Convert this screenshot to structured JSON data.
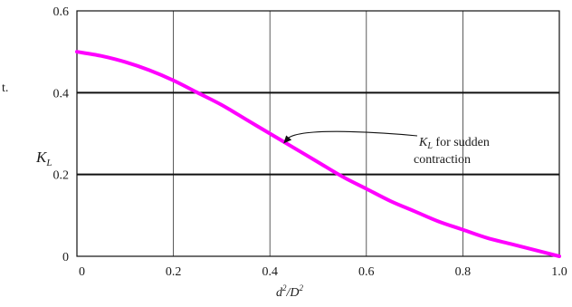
{
  "chart_data": {
    "type": "line",
    "title": "",
    "xlabel": {
      "base": "d",
      "sup1": "2",
      "mid": "/D",
      "sup2": "2"
    },
    "ylabel": {
      "base": "K",
      "sub": "L"
    },
    "xlim": [
      0,
      1.0
    ],
    "ylim": [
      0,
      0.6
    ],
    "x_ticks": [
      0,
      0.2,
      0.4,
      0.6,
      0.8,
      1.0
    ],
    "x_tick_labels": [
      "0",
      "0.2",
      "0.4",
      "0.6",
      "0.8",
      "1.0"
    ],
    "y_ticks": [
      0,
      0.2,
      0.4,
      0.6
    ],
    "y_tick_labels": [
      "0",
      "0.2",
      "0.4",
      "0.6"
    ],
    "grid": true,
    "series": [
      {
        "color": "#ff00ff",
        "x": [
          0,
          0.05,
          0.1,
          0.15,
          0.2,
          0.25,
          0.3,
          0.35,
          0.4,
          0.45,
          0.5,
          0.55,
          0.6,
          0.65,
          0.7,
          0.75,
          0.8,
          0.85,
          0.9,
          0.95,
          1.0
        ],
        "y": [
          0.5,
          0.49,
          0.475,
          0.455,
          0.43,
          0.4,
          0.37,
          0.335,
          0.3,
          0.265,
          0.23,
          0.195,
          0.165,
          0.135,
          0.11,
          0.085,
          0.065,
          0.045,
          0.03,
          0.015,
          0.0
        ]
      }
    ],
    "annotation": {
      "label_base": "K",
      "label_sub": "L",
      "line1_rest": " for sudden",
      "line2": "contraction",
      "point": [
        0.43,
        0.28
      ]
    }
  },
  "edge_fragment": "t."
}
